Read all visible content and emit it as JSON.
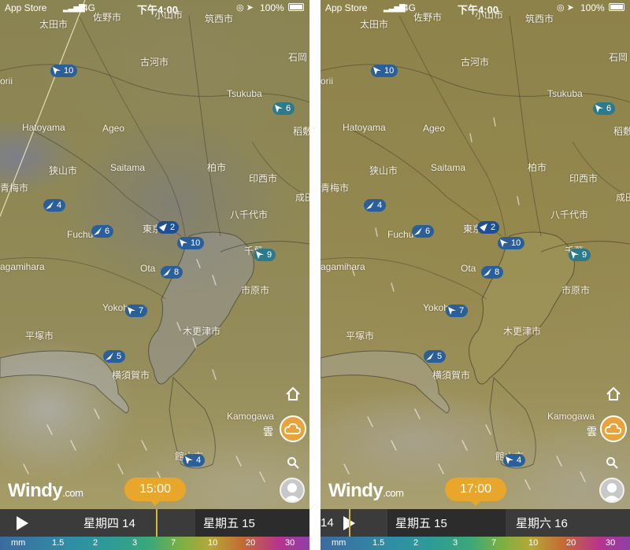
{
  "screens": [
    {
      "status": {
        "carrier": "App Store",
        "network": "4G",
        "time": "下午4:00",
        "battery": "100%"
      },
      "labels": {
        "taiden": "太田市",
        "sano": "佐野市",
        "oyama": "小山市",
        "chikusei": "筑西市",
        "koga": "古河市",
        "ishioka": "石岡",
        "orii": "orii",
        "tsukuba": "Tsukuba",
        "hatoyama": "Hatoyama",
        "ageo": "Ageo",
        "inashiki": "稻敷",
        "sayama": "狭山市",
        "saitama": "Saitama",
        "kashiwa": "柏市",
        "inzai": "印西市",
        "ome": "青梅市",
        "narita": "成田",
        "yachiyo": "八千代市",
        "fuchu": "Fuchu",
        "higashi": "東京",
        "chiba": "千葉",
        "sagamihara": "agamihara",
        "ota": "Ota",
        "ichihara": "市原市",
        "yokohama": "Yokohama",
        "kisarazu": "木更津市",
        "hiratsuka": "平塚市",
        "yokosuka": "横須賀市",
        "kamogawa": "Kamogawa",
        "tateyama": "館山市"
      },
      "winds": [
        "10",
        "6",
        "4",
        "6",
        "2",
        "10",
        "9",
        "8",
        "7",
        "5",
        "4"
      ],
      "weather_label": "雲",
      "logo": {
        "main": "Windy",
        "suffix": ".com"
      },
      "time_bubble": "15:00",
      "days": [
        "星期四 14",
        "星期五 15"
      ],
      "scale": [
        "mm",
        "1.5",
        "2",
        "3",
        "7",
        "10",
        "20",
        "30"
      ]
    },
    {
      "status": {
        "carrier": "App Store",
        "network": "4G",
        "time": "下午4:00",
        "battery": "100%"
      },
      "labels": {
        "taiden": "太田市",
        "sano": "佐野市",
        "oyama": "小山市",
        "chikusei": "筑西市",
        "koga": "古河市",
        "ishioka": "石岡",
        "orii": "orii",
        "tsukuba": "Tsukuba",
        "hatoyama": "Hatoyama",
        "ageo": "Ageo",
        "inashiki": "稻敷",
        "sayama": "狭山市",
        "saitama": "Saitama",
        "kashiwa": "柏市",
        "inzai": "印西市",
        "ome": "青梅市",
        "narita": "成田",
        "yachiyo": "八千代市",
        "fuchu": "Fuchu",
        "higashi": "東京",
        "chiba": "千葉",
        "sagamihara": "agamihara",
        "ota": "Ota",
        "ichihara": "市原市",
        "yokohama": "Yokohama",
        "kisarazu": "木更津市",
        "hiratsuka": "平塚市",
        "yokosuka": "横須賀市",
        "kamogawa": "Kamogawa",
        "tateyama": "館山市"
      },
      "winds": [
        "10",
        "6",
        "4",
        "6",
        "2",
        "10",
        "9",
        "8",
        "7",
        "5",
        "4"
      ],
      "weather_label": "雲",
      "logo": {
        "main": "Windy",
        "suffix": ".com"
      },
      "time_bubble": "17:00",
      "days": [
        "14",
        "星期五 15",
        "星期六 16"
      ],
      "scale": [
        "mm",
        "1.5",
        "2",
        "3",
        "7",
        "10",
        "20",
        "30"
      ]
    }
  ]
}
